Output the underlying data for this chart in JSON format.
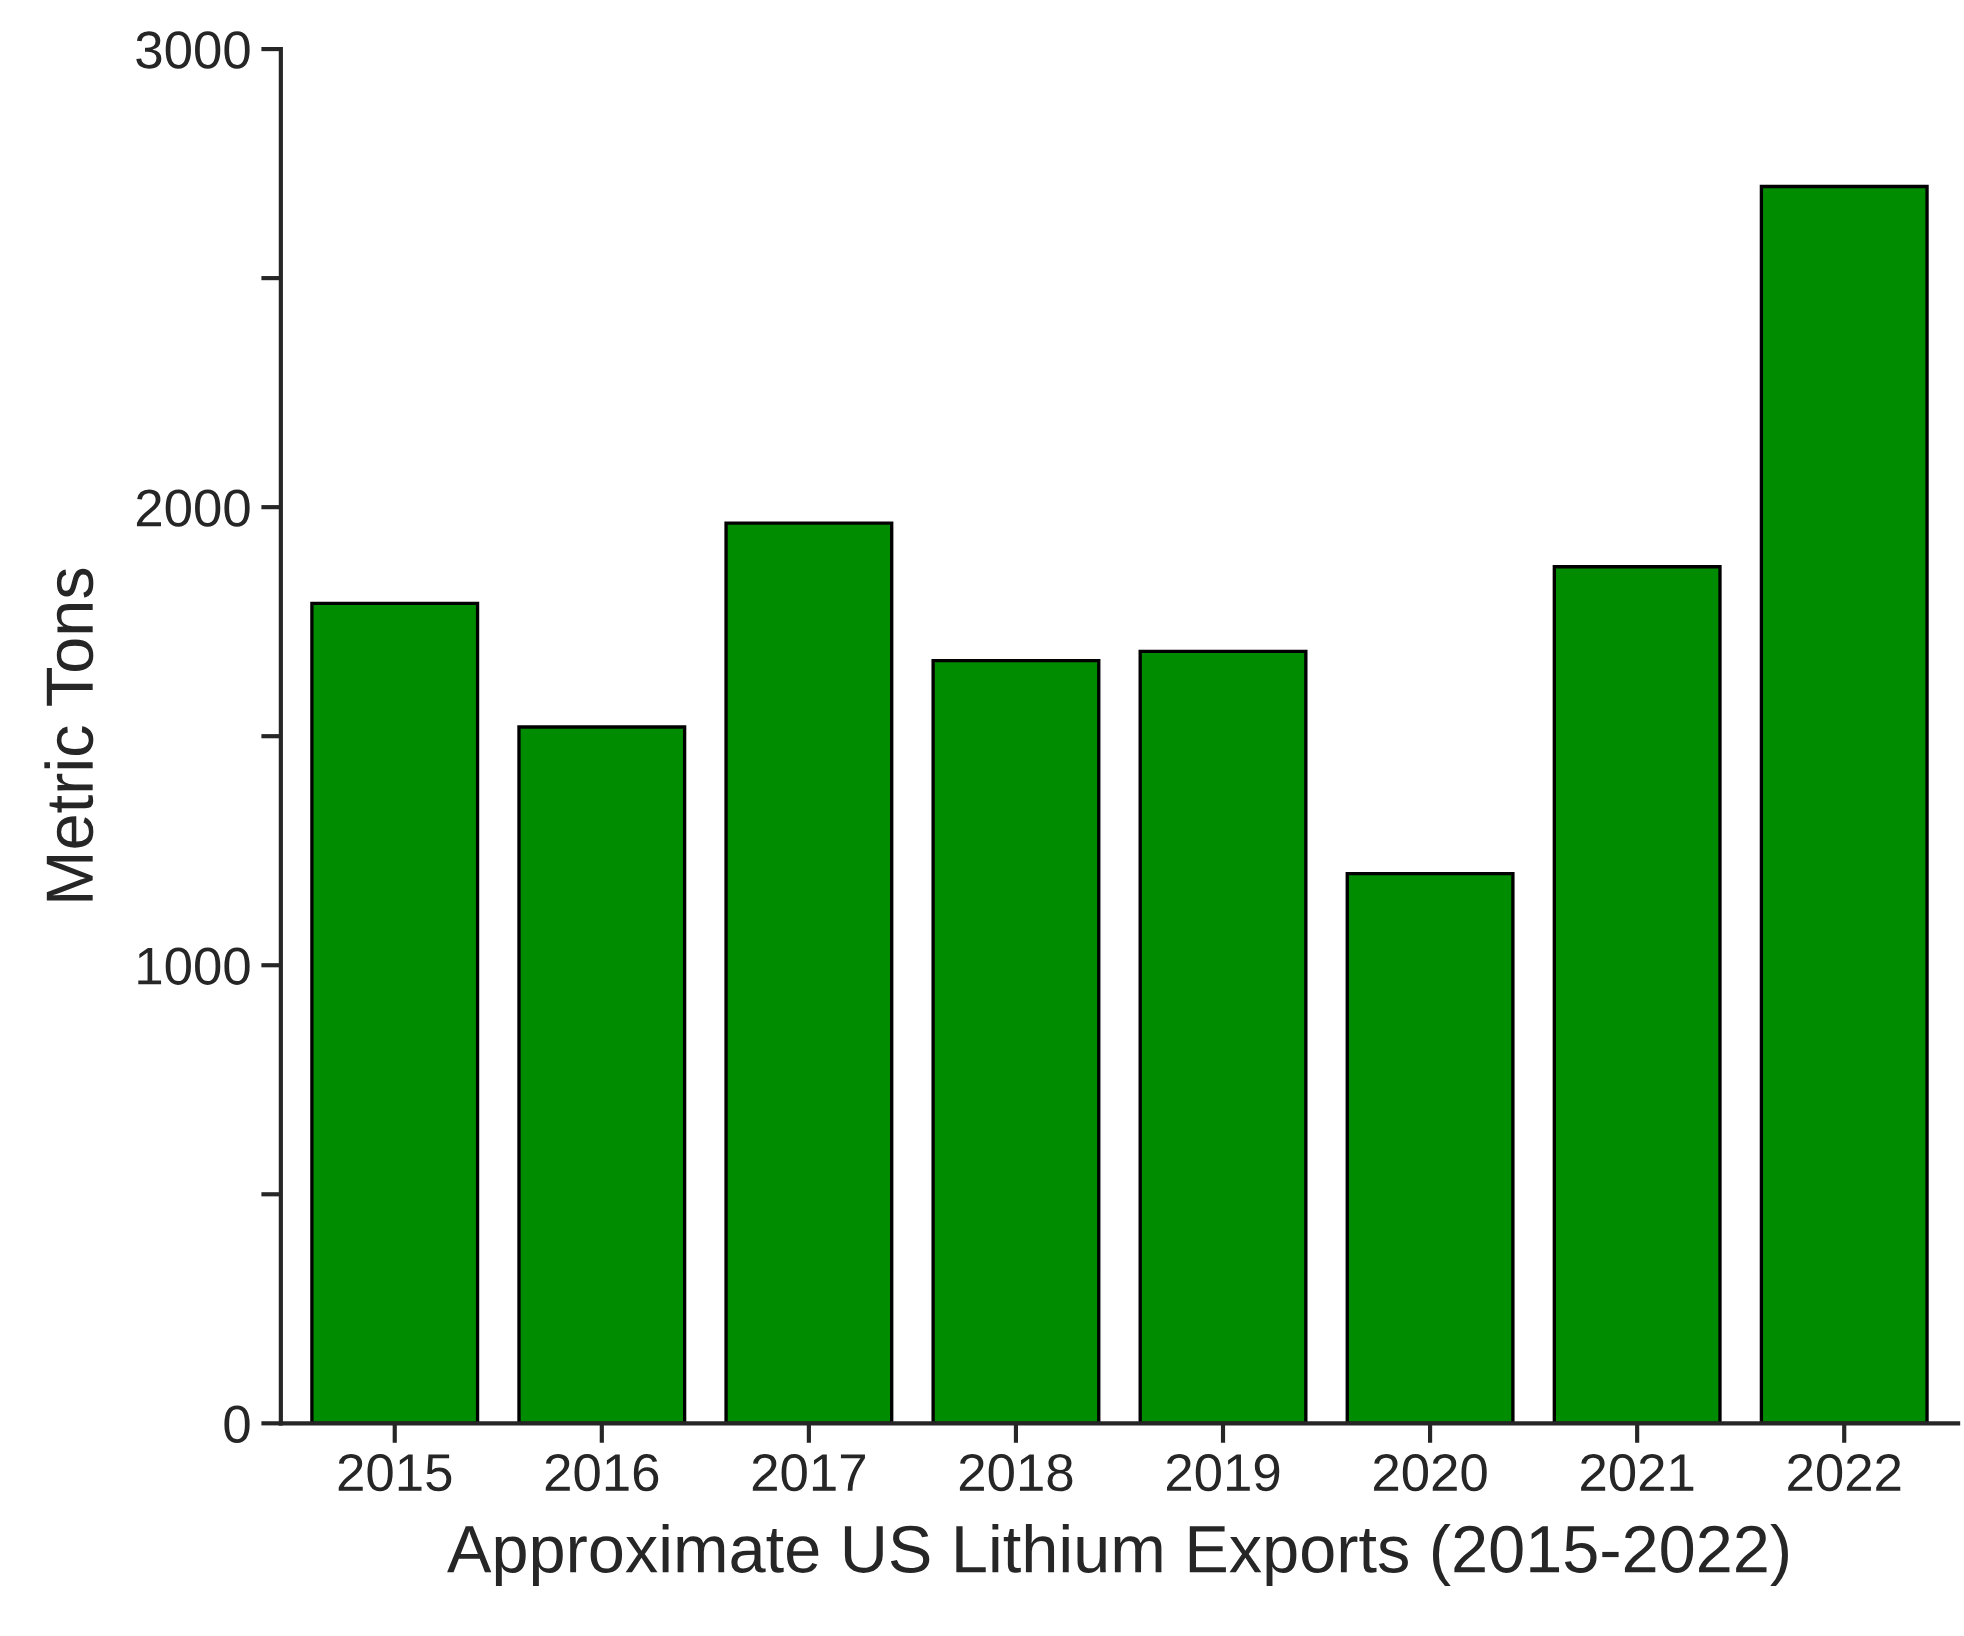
{
  "chart_data": {
    "type": "bar",
    "xlabel": "Approximate US Lithium Exports (2015-2022)",
    "ylabel": "Metric Tons",
    "categories": [
      "2015",
      "2016",
      "2017",
      "2018",
      "2019",
      "2020",
      "2021",
      "2022"
    ],
    "values": [
      1790,
      1520,
      1965,
      1665,
      1685,
      1200,
      1870,
      2700
    ],
    "color": "#008c00",
    "ylim": [
      0,
      3000
    ],
    "yticks": [
      0,
      {
        "value": 500,
        "label": null
      },
      1000,
      {
        "value": 1500,
        "label": null
      },
      2000,
      {
        "value": 2500,
        "label": null
      },
      3000
    ],
    "grid": false,
    "legend": false
  }
}
